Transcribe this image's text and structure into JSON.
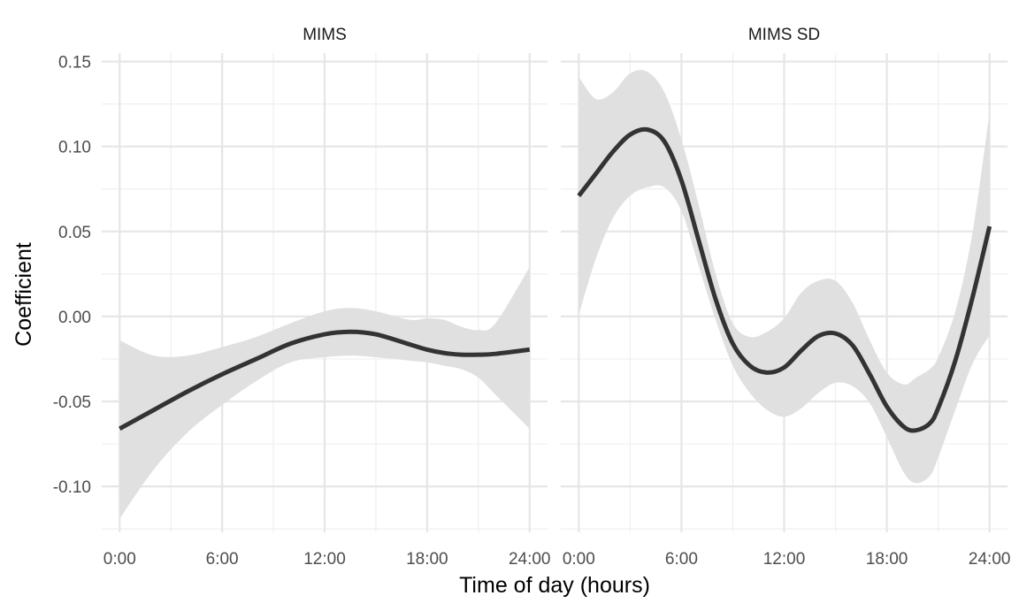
{
  "chart_data": {
    "type": "line",
    "xlabel": "Time of day (hours)",
    "ylabel": "Coefficient",
    "ylim": [
      -0.127,
      0.155
    ],
    "grid": true,
    "x_ticks": [
      {
        "value": 0,
        "label": "0:00"
      },
      {
        "value": 6,
        "label": "6:00"
      },
      {
        "value": 12,
        "label": "12:00"
      },
      {
        "value": 18,
        "label": "18:00"
      },
      {
        "value": 24,
        "label": "24:00"
      }
    ],
    "y_ticks": [
      {
        "value": 0.15,
        "label": "0.15"
      },
      {
        "value": 0.1,
        "label": "0.10"
      },
      {
        "value": 0.05,
        "label": "0.05"
      },
      {
        "value": 0.0,
        "label": "0.00"
      },
      {
        "value": -0.05,
        "label": "-0.05"
      },
      {
        "value": -0.1,
        "label": "-0.10"
      }
    ],
    "panels": [
      {
        "title": "MIMS",
        "xlim": [
          -1.05,
          25.05
        ],
        "x": [
          0,
          2,
          4,
          6,
          8,
          10,
          12,
          13.5,
          15,
          17,
          18,
          19,
          20,
          21,
          22,
          24
        ],
        "y": [
          -0.066,
          -0.055,
          -0.044,
          -0.034,
          -0.025,
          -0.016,
          -0.0105,
          -0.009,
          -0.0105,
          -0.0165,
          -0.0195,
          -0.0215,
          -0.0225,
          -0.0225,
          -0.022,
          -0.0195
        ],
        "lower": [
          -0.119,
          -0.09,
          -0.068,
          -0.052,
          -0.038,
          -0.027,
          -0.024,
          -0.023,
          -0.024,
          -0.026,
          -0.027,
          -0.029,
          -0.031,
          -0.036,
          -0.046,
          -0.066
        ],
        "upper": [
          -0.014,
          -0.023,
          -0.023,
          -0.018,
          -0.012,
          -0.004,
          0.003,
          0.005,
          0.003,
          -0.002,
          -0.001,
          -0.002,
          -0.006,
          -0.008,
          -0.004,
          0.029
        ]
      },
      {
        "title": "MIMS SD",
        "xlim": [
          -1.05,
          25.05
        ],
        "x": [
          0,
          1,
          2,
          3,
          4,
          5,
          6,
          7,
          8,
          9,
          10,
          11,
          12,
          13,
          14,
          15,
          16,
          17,
          18,
          19,
          19.7,
          20.5,
          21,
          22,
          23,
          24
        ],
        "y": [
          0.071,
          0.084,
          0.097,
          0.107,
          0.11,
          0.103,
          0.08,
          0.045,
          0.01,
          -0.016,
          -0.029,
          -0.033,
          -0.03,
          -0.02,
          -0.0115,
          -0.01,
          -0.017,
          -0.034,
          -0.053,
          -0.065,
          -0.067,
          -0.063,
          -0.054,
          -0.026,
          0.011,
          0.053
        ],
        "lower": [
          0.001,
          0.034,
          0.058,
          0.071,
          0.076,
          0.076,
          0.062,
          0.03,
          -0.002,
          -0.029,
          -0.045,
          -0.055,
          -0.059,
          -0.054,
          -0.045,
          -0.039,
          -0.041,
          -0.051,
          -0.071,
          -0.092,
          -0.098,
          -0.094,
          -0.083,
          -0.055,
          -0.028,
          -0.011
        ],
        "upper": [
          0.141,
          0.128,
          0.132,
          0.143,
          0.144,
          0.132,
          0.104,
          0.066,
          0.025,
          -0.004,
          -0.012,
          -0.009,
          -0.001,
          0.014,
          0.021,
          0.021,
          0.008,
          -0.014,
          -0.033,
          -0.04,
          -0.036,
          -0.031,
          -0.024,
          0.003,
          0.049,
          0.12
        ]
      }
    ]
  }
}
